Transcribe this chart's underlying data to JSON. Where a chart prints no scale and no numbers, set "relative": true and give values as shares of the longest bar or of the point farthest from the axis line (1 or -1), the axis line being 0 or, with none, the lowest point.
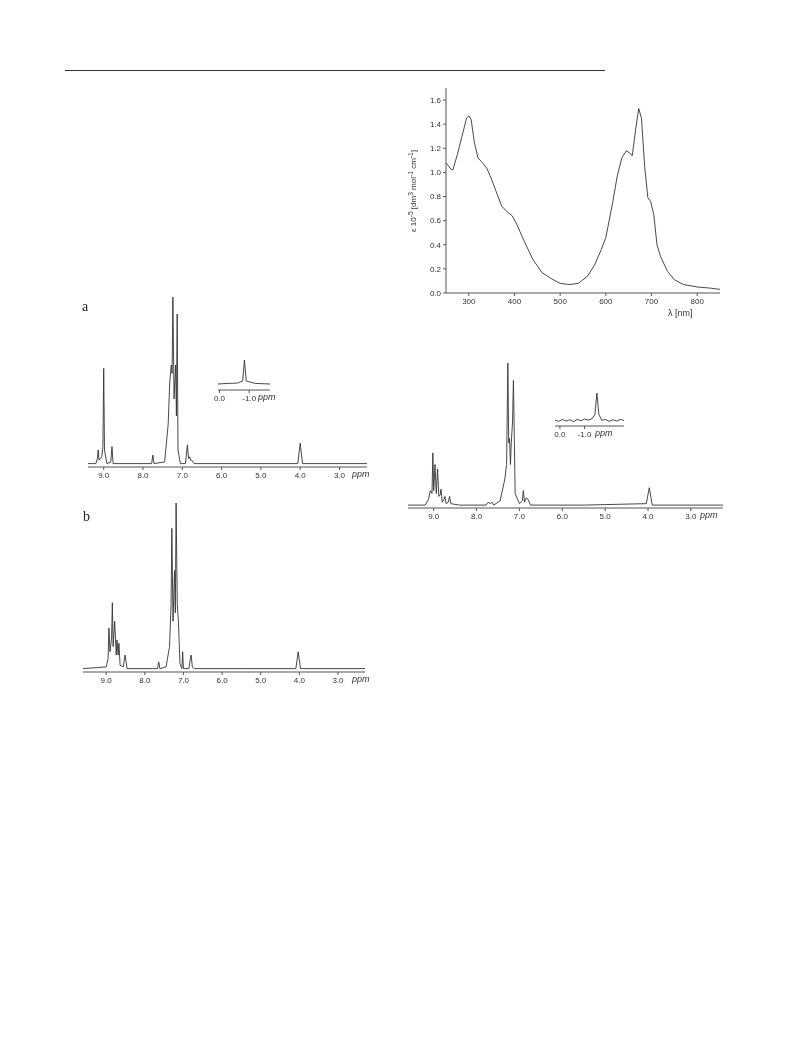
{
  "chart_data": [
    {
      "type": "line",
      "xlabel": "λ [nm]",
      "ylabel": "ε 10$^{-5}$  [dm$^{3}$ mol$^{-1}$ cm$^{-1}$]",
      "color": "#333333",
      "xlim": [
        250,
        850
      ],
      "ylim": [
        0,
        1.7
      ],
      "xticks": [
        300,
        400,
        500,
        600,
        700,
        800
      ],
      "yticks": [
        {
          "value": 0,
          "label": "0.0"
        },
        {
          "value": 0.2,
          "label": "0.2"
        },
        {
          "value": 0.4,
          "label": "0.4"
        },
        {
          "value": 0.6,
          "label": "0.6"
        },
        {
          "value": 0.8,
          "label": "0.8"
        },
        {
          "value": 1,
          "label": "1.0"
        },
        {
          "value": 1.2,
          "label": "1.2"
        },
        {
          "value": 1.4,
          "label": "1.4"
        },
        {
          "value": 1.6,
          "label": "1.6"
        }
      ],
      "x": [
        250,
        260,
        265,
        275,
        285,
        295,
        300,
        305,
        312,
        320,
        330,
        340,
        350,
        360,
        372,
        385,
        395,
        405,
        420,
        440,
        460,
        480,
        500,
        520,
        540,
        560,
        575,
        590,
        600,
        615,
        625,
        635,
        645,
        652,
        658,
        665,
        672,
        678,
        685,
        692,
        698,
        705,
        712,
        720,
        735,
        750,
        770,
        800,
        830,
        850
      ],
      "values": [
        1.08,
        1.03,
        1.02,
        1.15,
        1.3,
        1.45,
        1.47,
        1.44,
        1.25,
        1.12,
        1.08,
        1.03,
        0.94,
        0.84,
        0.72,
        0.67,
        0.64,
        0.57,
        0.44,
        0.28,
        0.17,
        0.12,
        0.08,
        0.07,
        0.08,
        0.14,
        0.23,
        0.36,
        0.46,
        0.75,
        0.97,
        1.12,
        1.18,
        1.16,
        1.14,
        1.35,
        1.53,
        1.45,
        1.05,
        0.79,
        0.76,
        0.65,
        0.4,
        0.3,
        0.18,
        0.11,
        0.07,
        0.05,
        0.04,
        0.03
      ]
    },
    {
      "type": "line",
      "title": "a",
      "xlabel": "ppm",
      "relative": true,
      "color": "#333333",
      "xlim": [
        9.4,
        2.3
      ],
      "xticks": [
        {
          "value": 9,
          "label": "9.0"
        },
        {
          "value": 8,
          "label": "8.0"
        },
        {
          "value": 7,
          "label": "7.0"
        },
        {
          "value": 6,
          "label": "6.0"
        },
        {
          "value": 5,
          "label": "5.0"
        },
        {
          "value": 4,
          "label": "4.0"
        },
        {
          "value": 3,
          "label": "3.0"
        }
      ],
      "x": [
        9.4,
        9.2,
        9.16,
        9.14,
        9.12,
        9.05,
        9.02,
        9.0,
        8.98,
        8.92,
        8.82,
        8.79,
        8.76,
        8.0,
        7.78,
        7.75,
        7.72,
        7.45,
        7.36,
        7.32,
        7.28,
        7.26,
        7.24,
        7.21,
        7.17,
        7.15,
        7.13,
        7.11,
        7.05,
        6.92,
        6.87,
        6.84,
        6.81,
        6.79,
        6.76,
        6.7,
        5.5,
        4.06,
        4.0,
        3.94,
        3.5,
        2.3
      ],
      "values": [
        0.02,
        0.02,
        0.05,
        0.1,
        0.04,
        0.06,
        0.12,
        0.58,
        0.1,
        0.02,
        0.03,
        0.12,
        0.02,
        0.02,
        0.02,
        0.07,
        0.02,
        0.03,
        0.25,
        0.5,
        0.6,
        0.55,
        1.0,
        0.4,
        0.6,
        0.3,
        0.9,
        0.1,
        0.02,
        0.02,
        0.13,
        0.05,
        0.06,
        0.04,
        0.04,
        0.02,
        0.02,
        0.02,
        0.14,
        0.02,
        0.02,
        0.02
      ]
    },
    {
      "type": "line",
      "xlabel": "ppm",
      "relative": true,
      "color": "#333333",
      "xlim": [
        0.05,
        -1.7
      ],
      "xticks": [
        {
          "value": 0,
          "label": "0.0"
        },
        {
          "value": -1,
          "label": "-1.0"
        }
      ],
      "x": [
        0.05,
        -0.3,
        -0.6,
        -0.78,
        -0.84,
        -0.9,
        -1.2,
        -1.7
      ],
      "values": [
        0.2,
        0.22,
        0.23,
        0.3,
        1.0,
        0.3,
        0.22,
        0.2
      ]
    },
    {
      "type": "line",
      "xlabel": "ppm",
      "relative": true,
      "color": "#333333",
      "xlim": [
        9.6,
        2.25
      ],
      "xticks": [
        {
          "value": 9,
          "label": "9.0"
        },
        {
          "value": 8,
          "label": "8.0"
        },
        {
          "value": 7,
          "label": "7.0"
        },
        {
          "value": 6,
          "label": "6.0"
        },
        {
          "value": 5,
          "label": "5.0"
        },
        {
          "value": 4,
          "label": "4.0"
        },
        {
          "value": 3,
          "label": "3.0"
        }
      ],
      "x": [
        9.6,
        9.2,
        9.12,
        9.08,
        9.04,
        9.02,
        9.0,
        8.97,
        8.94,
        8.91,
        8.88,
        8.85,
        8.83,
        8.8,
        8.76,
        8.74,
        8.71,
        8.66,
        8.63,
        8.6,
        8.4,
        7.78,
        7.73,
        7.68,
        7.64,
        7.6,
        7.45,
        7.34,
        7.3,
        7.27,
        7.25,
        7.23,
        7.21,
        7.19,
        7.16,
        7.14,
        7.1,
        7.0,
        6.93,
        6.91,
        6.88,
        6.84,
        6.8,
        6.74,
        5.5,
        4.04,
        3.97,
        3.9,
        2.25
      ],
      "values": [
        0.02,
        0.02,
        0.06,
        0.12,
        0.1,
        0.38,
        0.12,
        0.3,
        0.1,
        0.27,
        0.08,
        0.09,
        0.13,
        0.04,
        0.06,
        0.08,
        0.03,
        0.04,
        0.08,
        0.03,
        0.02,
        0.02,
        0.04,
        0.03,
        0.04,
        0.02,
        0.05,
        0.2,
        0.3,
        1.0,
        0.45,
        0.48,
        0.3,
        0.45,
        0.6,
        0.88,
        0.1,
        0.03,
        0.05,
        0.12,
        0.04,
        0.07,
        0.06,
        0.02,
        0.02,
        0.03,
        0.14,
        0.02,
        0.02
      ]
    },
    {
      "type": "line",
      "xlabel": "ppm",
      "relative": true,
      "color": "#333333",
      "xlim": [
        0.2,
        -2.6
      ],
      "xticks": [
        {
          "value": 0,
          "label": "0.0"
        },
        {
          "value": -1,
          "label": "-1.0"
        }
      ],
      "x": [
        0.2,
        0.05,
        -0.1,
        -0.25,
        -0.4,
        -0.55,
        -0.7,
        -0.85,
        -1.0,
        -1.15,
        -1.3,
        -1.42,
        -1.5,
        -1.58,
        -1.7,
        -1.85,
        -2.0,
        -2.15,
        -2.3,
        -2.45,
        -2.6
      ],
      "values": [
        0.18,
        0.14,
        0.2,
        0.15,
        0.19,
        0.13,
        0.2,
        0.16,
        0.21,
        0.18,
        0.22,
        0.35,
        1.0,
        0.35,
        0.17,
        0.2,
        0.14,
        0.19,
        0.15,
        0.2,
        0.17
      ]
    },
    {
      "type": "line",
      "title": "b",
      "xlabel": "ppm",
      "relative": true,
      "color": "#333333",
      "xlim": [
        9.6,
        2.3
      ],
      "xticks": [
        {
          "value": 9,
          "label": "9.0"
        },
        {
          "value": 8,
          "label": "8.0"
        },
        {
          "value": 7,
          "label": "7.0"
        },
        {
          "value": 6,
          "label": "6.0"
        },
        {
          "value": 5,
          "label": "5.0"
        },
        {
          "value": 4,
          "label": "4.0"
        },
        {
          "value": 3,
          "label": "3.0"
        }
      ],
      "x": [
        9.6,
        9.0,
        8.95,
        8.93,
        8.9,
        8.86,
        8.84,
        8.82,
        8.78,
        8.74,
        8.72,
        8.69,
        8.67,
        8.64,
        8.56,
        8.51,
        8.46,
        7.8,
        7.67,
        7.64,
        7.61,
        7.45,
        7.36,
        7.32,
        7.3,
        7.27,
        7.23,
        7.21,
        7.19,
        7.16,
        7.13,
        7.09,
        7.04,
        7.02,
        7.0,
        6.86,
        6.82,
        6.8,
        6.77,
        6.72,
        5.5,
        4.09,
        4.03,
        3.97,
        2.3
      ],
      "values": [
        0.02,
        0.03,
        0.08,
        0.26,
        0.12,
        0.2,
        0.41,
        0.15,
        0.3,
        0.1,
        0.19,
        0.1,
        0.17,
        0.04,
        0.03,
        0.1,
        0.02,
        0.02,
        0.02,
        0.06,
        0.02,
        0.03,
        0.15,
        0.4,
        0.85,
        0.3,
        0.6,
        0.35,
        1.0,
        0.4,
        0.3,
        0.05,
        0.02,
        0.12,
        0.02,
        0.02,
        0.08,
        0.1,
        0.03,
        0.02,
        0.02,
        0.02,
        0.12,
        0.02,
        0.02
      ]
    }
  ]
}
